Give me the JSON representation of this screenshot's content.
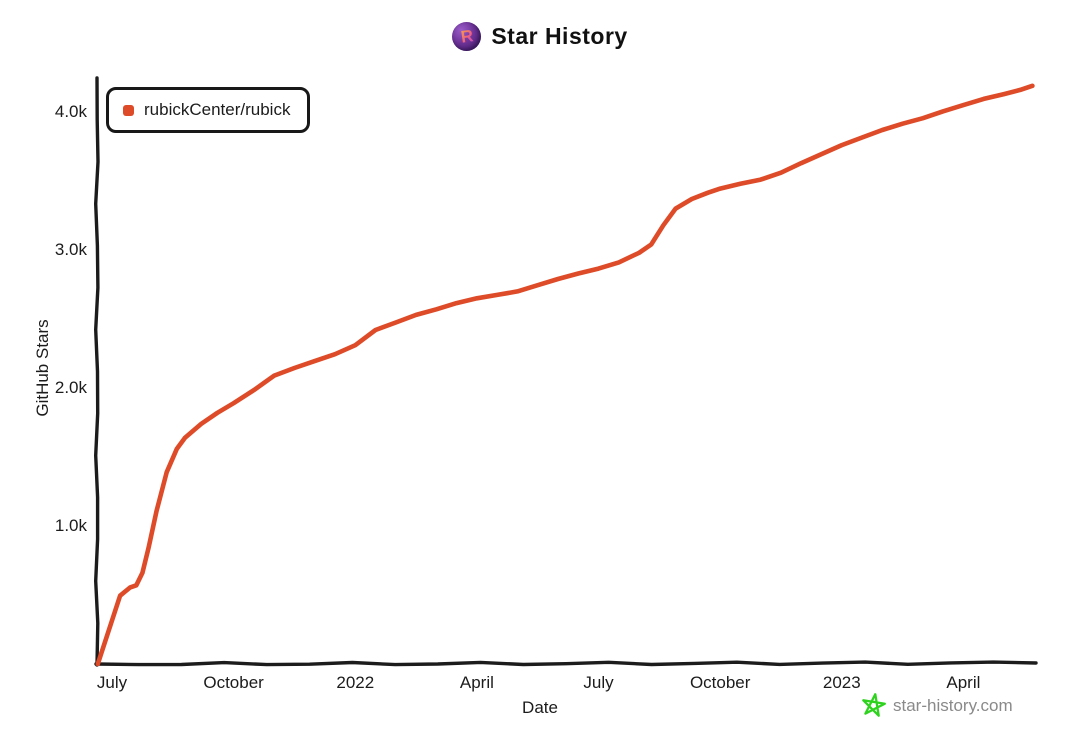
{
  "page": {
    "background": "#ffffff",
    "text_color": "#1c1c1c"
  },
  "header": {
    "logo_letter": "R"
  },
  "watermark": {
    "label": "star-history.com",
    "star_color": "#2fd31f",
    "text_color": "#8a8a8a"
  },
  "chart_data": {
    "type": "line",
    "title": "Star History",
    "xlabel": "Date",
    "ylabel": "GitHub Stars",
    "x_unit": "months since 2021-07-01",
    "xlim": [
      -0.37,
      22.79
    ],
    "ylim": [
      0,
      4232
    ],
    "grid": false,
    "legend_position": "top-left",
    "axis_color": "#1c1c1c",
    "x_ticks": [
      {
        "label": "July",
        "m": 0
      },
      {
        "label": "October",
        "m": 3
      },
      {
        "label": "2022",
        "m": 6
      },
      {
        "label": "April",
        "m": 9
      },
      {
        "label": "July",
        "m": 12
      },
      {
        "label": "October",
        "m": 15
      },
      {
        "label": "2023",
        "m": 18
      },
      {
        "label": "April",
        "m": 21
      }
    ],
    "y_ticks": [
      {
        "label": "1.0k",
        "value": 1000
      },
      {
        "label": "2.0k",
        "value": 2000
      },
      {
        "label": "3.0k",
        "value": 3000
      },
      {
        "label": "4.0k",
        "value": 4000
      }
    ],
    "series": [
      {
        "name": "rubickCenter/rubick",
        "color": "#de4b28",
        "points": [
          [
            -0.35,
            0
          ],
          [
            0.2,
            495
          ],
          [
            0.45,
            555
          ],
          [
            0.6,
            570
          ],
          [
            0.75,
            660
          ],
          [
            0.9,
            840
          ],
          [
            1.1,
            1110
          ],
          [
            1.35,
            1390
          ],
          [
            1.6,
            1560
          ],
          [
            1.8,
            1640
          ],
          [
            2.2,
            1740
          ],
          [
            2.6,
            1820
          ],
          [
            3.0,
            1890
          ],
          [
            3.5,
            1985
          ],
          [
            4.0,
            2090
          ],
          [
            4.5,
            2145
          ],
          [
            5.0,
            2195
          ],
          [
            5.5,
            2245
          ],
          [
            6.0,
            2310
          ],
          [
            6.5,
            2420
          ],
          [
            7.0,
            2475
          ],
          [
            7.5,
            2530
          ],
          [
            8.0,
            2570
          ],
          [
            8.5,
            2615
          ],
          [
            9.0,
            2650
          ],
          [
            9.5,
            2675
          ],
          [
            10.0,
            2700
          ],
          [
            10.5,
            2745
          ],
          [
            11.0,
            2790
          ],
          [
            11.5,
            2830
          ],
          [
            12.0,
            2865
          ],
          [
            12.5,
            2910
          ],
          [
            13.0,
            2980
          ],
          [
            13.3,
            3040
          ],
          [
            13.6,
            3180
          ],
          [
            13.9,
            3300
          ],
          [
            14.3,
            3370
          ],
          [
            14.7,
            3415
          ],
          [
            15.0,
            3445
          ],
          [
            15.5,
            3480
          ],
          [
            16.0,
            3510
          ],
          [
            16.5,
            3560
          ],
          [
            17.0,
            3630
          ],
          [
            17.5,
            3695
          ],
          [
            18.0,
            3760
          ],
          [
            18.5,
            3815
          ],
          [
            19.0,
            3870
          ],
          [
            19.5,
            3915
          ],
          [
            20.0,
            3955
          ],
          [
            20.5,
            4005
          ],
          [
            21.0,
            4050
          ],
          [
            21.5,
            4095
          ],
          [
            22.0,
            4130
          ],
          [
            22.4,
            4160
          ],
          [
            22.7,
            4190
          ]
        ]
      }
    ]
  }
}
